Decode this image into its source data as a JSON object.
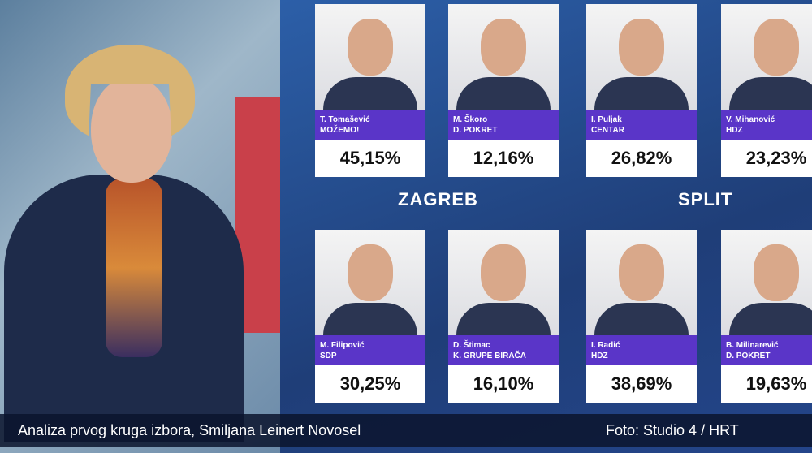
{
  "screen": {
    "cities": [
      {
        "label": "ZAGREB"
      },
      {
        "label": "SPLIT"
      }
    ],
    "candidates": [
      {
        "name": "T. Tomašević",
        "party": "MOŽEMO!",
        "result": "45,15%"
      },
      {
        "name": "M. Škoro",
        "party": "D. POKRET",
        "result": "12,16%"
      },
      {
        "name": "I. Puljak",
        "party": "CENTAR",
        "result": "26,82%"
      },
      {
        "name": "V. Mihanović",
        "party": "HDZ",
        "result": "23,23%"
      },
      {
        "name": "M. Filipović",
        "party": "SDP",
        "result": "30,25%"
      },
      {
        "name": "D. Štimac",
        "party": "K. GRUPE BIRAČA",
        "result": "16,10%"
      },
      {
        "name": "I. Radić",
        "party": "HDZ",
        "result": "38,69%"
      },
      {
        "name": "B. Milinarević",
        "party": "D. POKRET",
        "result": "19,63%"
      }
    ]
  },
  "caption": {
    "text": "Analiza prvog kruga izbora, Smiljana Leinert Novosel",
    "credit": "Foto: Studio 4 / HRT"
  }
}
